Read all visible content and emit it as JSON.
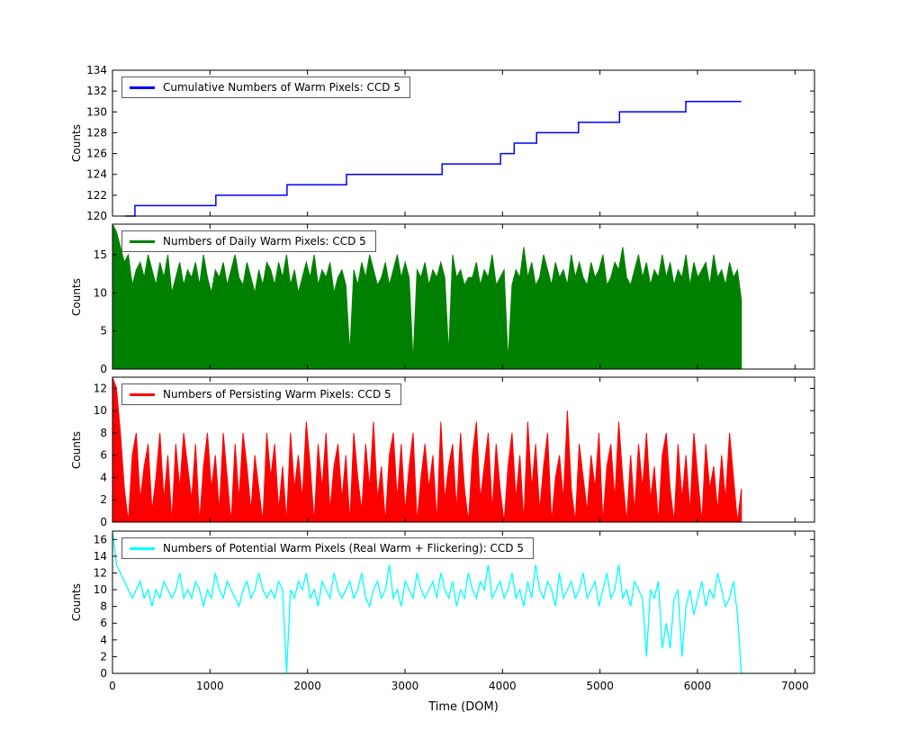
{
  "figure": {
    "xlabel": "Time (DOM)",
    "background": "#ffffff"
  },
  "axis": {
    "xlim": [
      0,
      7200
    ],
    "xticks": [
      0,
      1000,
      2000,
      3000,
      4000,
      5000,
      6000,
      7000
    ]
  },
  "chart_data": [
    {
      "type": "step",
      "legend": "Cumulative Numbers of Warm Pixels: CCD 5",
      "ylabel": "Counts",
      "color": "#0000ff",
      "ylim": [
        120,
        134
      ],
      "yticks": [
        120,
        122,
        124,
        126,
        128,
        130,
        132,
        134
      ],
      "x_end": 6450,
      "steps": [
        [
          130,
          120
        ],
        [
          230,
          121
        ],
        [
          1060,
          122
        ],
        [
          1790,
          123
        ],
        [
          2400,
          124
        ],
        [
          3380,
          125
        ],
        [
          3980,
          126
        ],
        [
          4120,
          127
        ],
        [
          4350,
          128
        ],
        [
          4780,
          129
        ],
        [
          5200,
          130
        ],
        [
          5880,
          131
        ]
      ]
    },
    {
      "type": "area",
      "legend": "Numbers of Daily Warm Pixels: CCD 5",
      "ylabel": "Counts",
      "color": "#008000",
      "ylim": [
        0,
        19
      ],
      "yticks": [
        0,
        5,
        10,
        15
      ],
      "x_start": 0,
      "x_end": 6450,
      "values": [
        19,
        18,
        16,
        14,
        15,
        11,
        13,
        14,
        12,
        15,
        13,
        11,
        14,
        12,
        15,
        10,
        12,
        14,
        11,
        13,
        12,
        14,
        11,
        15,
        12,
        10,
        13,
        12,
        14,
        11,
        13,
        15,
        12,
        11,
        14,
        12,
        10,
        13,
        11,
        14,
        13,
        11,
        14,
        12,
        15,
        11,
        13,
        10,
        12,
        14,
        12,
        15,
        11,
        13,
        12,
        14,
        10,
        12,
        13,
        11,
        2,
        13,
        11,
        14,
        12,
        15,
        13,
        11,
        12,
        14,
        11,
        13,
        15,
        12,
        14,
        12,
        1,
        13,
        12,
        14,
        11,
        13,
        12,
        14,
        12,
        2,
        15,
        12,
        13,
        11,
        12,
        12,
        14,
        11,
        13,
        12,
        15,
        11,
        12,
        13,
        1,
        11,
        13,
        12,
        16,
        12,
        14,
        11,
        12,
        15,
        13,
        11,
        14,
        12,
        13,
        11,
        15,
        12,
        14,
        12,
        11,
        14,
        12,
        13,
        15,
        11,
        12,
        14,
        13,
        16,
        12,
        11,
        13,
        15,
        12,
        14,
        11,
        13,
        12,
        15,
        12,
        14,
        11,
        13,
        12,
        15,
        11,
        14,
        12,
        13,
        14,
        11,
        15,
        12,
        13,
        11,
        14,
        12,
        13,
        9
      ]
    },
    {
      "type": "area",
      "legend": "Numbers of Persisting Warm Pixels: CCD 5",
      "ylabel": "Counts",
      "color": "#ff0000",
      "ylim": [
        0,
        13
      ],
      "yticks": [
        0,
        2,
        4,
        6,
        8,
        10,
        12
      ],
      "x_start": 0,
      "x_end": 6450,
      "values": [
        13,
        12,
        8,
        3,
        0,
        6,
        8,
        2,
        5,
        7,
        1,
        4,
        8,
        2,
        6,
        0,
        7,
        3,
        8,
        5,
        2,
        7,
        0,
        5,
        8,
        3,
        6,
        1,
        8,
        4,
        0,
        7,
        2,
        8,
        5,
        1,
        6,
        3,
        0,
        8,
        4,
        7,
        1,
        5,
        0,
        8,
        3,
        6,
        2,
        9,
        5,
        0,
        7,
        3,
        8,
        1,
        5,
        7,
        2,
        6,
        0,
        8,
        4,
        1,
        7,
        3,
        9,
        2,
        5,
        0,
        6,
        8,
        2,
        7,
        1,
        5,
        8,
        0,
        4,
        7,
        3,
        6,
        0,
        9,
        2,
        5,
        7,
        1,
        8,
        3,
        0,
        6,
        9,
        2,
        5,
        8,
        1,
        7,
        3,
        0,
        5,
        8,
        2,
        6,
        0,
        9,
        3,
        7,
        1,
        5,
        8,
        0,
        4,
        6,
        2,
        10,
        3,
        0,
        7,
        4,
        1,
        6,
        3,
        8,
        0,
        5,
        7,
        2,
        9,
        4,
        0,
        6,
        1,
        7,
        3,
        8,
        2,
        5,
        0,
        6,
        8,
        3,
        0,
        7,
        2,
        6,
        1,
        8,
        4,
        0,
        7,
        3,
        5,
        1,
        6,
        2,
        8,
        4,
        0,
        3
      ]
    },
    {
      "type": "line",
      "legend": "Numbers of Potential Warm Pixels (Real Warm + Flickering): CCD 5",
      "ylabel": "Counts",
      "color": "#00ffff",
      "ylim": [
        0,
        17
      ],
      "yticks": [
        0,
        2,
        4,
        6,
        8,
        10,
        12,
        14,
        16
      ],
      "x_start": 0,
      "x_end": 6450,
      "values": [
        17,
        13,
        12,
        11,
        10,
        9,
        10,
        11,
        9,
        10,
        8,
        10,
        9,
        11,
        10,
        9,
        10,
        12,
        9,
        10,
        9,
        11,
        10,
        8,
        10,
        9,
        12,
        10,
        9,
        11,
        10,
        9,
        8,
        10,
        11,
        9,
        10,
        12,
        10,
        9,
        10,
        9,
        11,
        10,
        0,
        10,
        9,
        11,
        10,
        12,
        9,
        10,
        8,
        11,
        10,
        9,
        12,
        10,
        9,
        10,
        11,
        9,
        10,
        12,
        9,
        8,
        10,
        11,
        9,
        10,
        13,
        9,
        10,
        8,
        11,
        10,
        9,
        12,
        10,
        9,
        10,
        11,
        9,
        12,
        10,
        9,
        11,
        8,
        10,
        9,
        12,
        10,
        9,
        11,
        10,
        13,
        9,
        10,
        11,
        9,
        10,
        12,
        9,
        10,
        8,
        11,
        9,
        13,
        10,
        9,
        11,
        10,
        8,
        12,
        9,
        10,
        11,
        9,
        10,
        12,
        9,
        10,
        11,
        8,
        10,
        12,
        9,
        10,
        13,
        9,
        10,
        8,
        11,
        10,
        9,
        2,
        10,
        9,
        11,
        3,
        6,
        3,
        9,
        10,
        2,
        8,
        10,
        7,
        9,
        11,
        8,
        10,
        9,
        12,
        10,
        8,
        9,
        11,
        7,
        0
      ]
    }
  ]
}
